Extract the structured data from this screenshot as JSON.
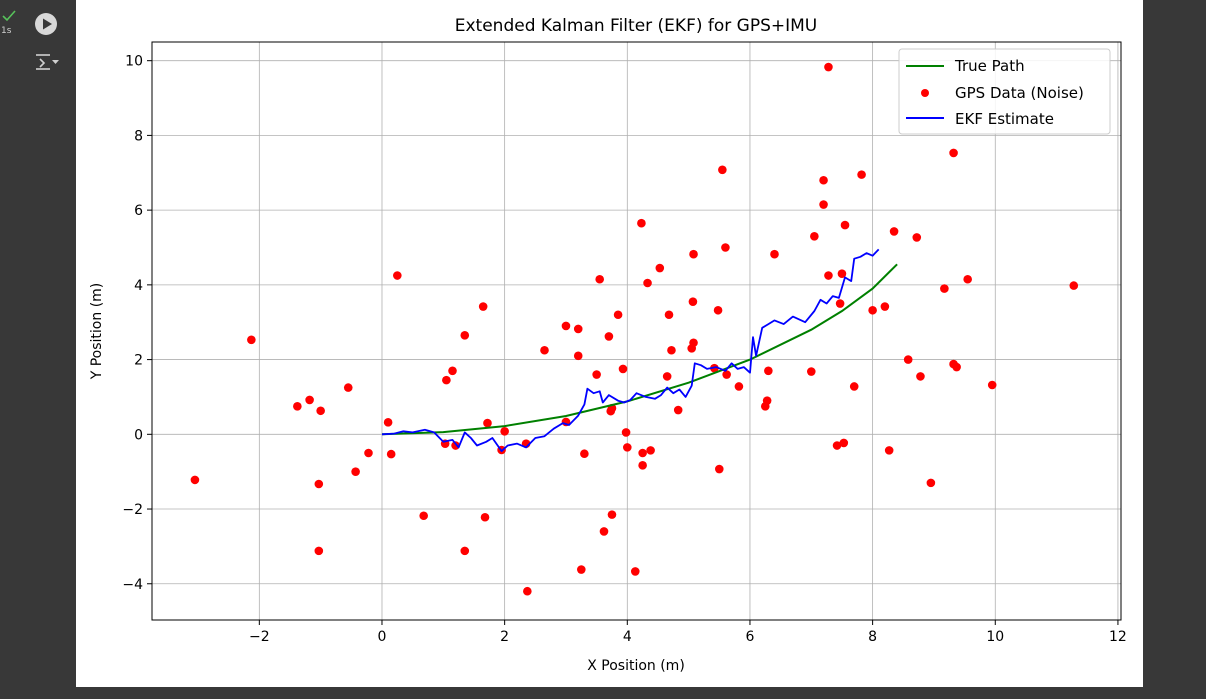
{
  "cell": {
    "exec_time": "1s",
    "run_icon": "play-icon",
    "status_icon": "check-icon",
    "output_icon": "output-toggle-icon"
  },
  "colors": {
    "true_path": "#008000",
    "gps": "#ff0000",
    "ekf": "#0000ff",
    "grid": "#b0b0b0"
  },
  "chart_data": {
    "type": "line",
    "title": "Extended Kalman Filter (EKF) for GPS+IMU",
    "xlabel": "X Position (m)",
    "ylabel": "Y Position (m)",
    "xlim": [
      -3.75,
      12.05
    ],
    "ylim": [
      -4.97,
      10.5
    ],
    "xticks": [
      -2,
      0,
      2,
      4,
      6,
      8,
      10,
      12
    ],
    "yticks": [
      -4,
      -2,
      0,
      2,
      4,
      6,
      8,
      10
    ],
    "xtick_labels": [
      "−2",
      "0",
      "2",
      "4",
      "6",
      "8",
      "10",
      "12"
    ],
    "ytick_labels": [
      "−4",
      "−2",
      "0",
      "2",
      "4",
      "6",
      "8",
      "10"
    ],
    "grid": true,
    "legend_position": "top-right",
    "legend": [
      "True Path",
      "GPS Data (Noise)",
      "EKF Estimate"
    ],
    "series": [
      {
        "name": "True Path",
        "kind": "line",
        "x": [
          0,
          1,
          2,
          3,
          4,
          5,
          6,
          7,
          7.5,
          8,
          8.4
        ],
        "y": [
          0,
          0.06,
          0.22,
          0.49,
          0.88,
          1.38,
          2.0,
          2.8,
          3.3,
          3.9,
          4.55
        ]
      },
      {
        "name": "GPS Data (Noise)",
        "kind": "scatter",
        "points": [
          [
            -3.05,
            -1.22
          ],
          [
            -2.13,
            2.53
          ],
          [
            -1.38,
            0.75
          ],
          [
            -1.18,
            0.92
          ],
          [
            -1.0,
            0.63
          ],
          [
            -1.03,
            -1.33
          ],
          [
            -1.03,
            -3.12
          ],
          [
            -0.55,
            1.25
          ],
          [
            -0.43,
            -1.0
          ],
          [
            -0.22,
            -0.5
          ],
          [
            0.1,
            0.32
          ],
          [
            0.15,
            -0.53
          ],
          [
            0.25,
            4.25
          ],
          [
            0.68,
            -2.18
          ],
          [
            1.03,
            -0.25
          ],
          [
            1.05,
            1.45
          ],
          [
            1.15,
            1.7
          ],
          [
            1.2,
            -0.3
          ],
          [
            1.35,
            2.65
          ],
          [
            1.35,
            -3.12
          ],
          [
            1.65,
            3.42
          ],
          [
            1.68,
            -2.22
          ],
          [
            1.72,
            0.3
          ],
          [
            1.95,
            -0.42
          ],
          [
            2.0,
            0.08
          ],
          [
            2.35,
            -0.25
          ],
          [
            2.37,
            -4.2
          ],
          [
            2.65,
            2.25
          ],
          [
            3.0,
            2.9
          ],
          [
            3.0,
            0.33
          ],
          [
            3.2,
            2.1
          ],
          [
            3.2,
            2.82
          ],
          [
            3.25,
            -3.62
          ],
          [
            3.3,
            -0.52
          ],
          [
            3.5,
            1.6
          ],
          [
            3.55,
            4.15
          ],
          [
            3.62,
            -2.6
          ],
          [
            3.7,
            2.62
          ],
          [
            3.73,
            0.62
          ],
          [
            3.75,
            0.7
          ],
          [
            3.75,
            -2.15
          ],
          [
            3.85,
            3.2
          ],
          [
            3.93,
            1.75
          ],
          [
            3.98,
            0.05
          ],
          [
            4.0,
            -0.35
          ],
          [
            4.13,
            -3.67
          ],
          [
            4.23,
            5.65
          ],
          [
            4.25,
            -0.5
          ],
          [
            4.25,
            -0.83
          ],
          [
            4.33,
            4.05
          ],
          [
            4.38,
            -0.43
          ],
          [
            4.53,
            4.45
          ],
          [
            4.65,
            1.55
          ],
          [
            4.68,
            3.2
          ],
          [
            4.72,
            2.25
          ],
          [
            4.83,
            0.65
          ],
          [
            5.05,
            2.3
          ],
          [
            5.08,
            2.45
          ],
          [
            5.07,
            3.55
          ],
          [
            5.08,
            4.82
          ],
          [
            5.42,
            1.77
          ],
          [
            5.48,
            3.32
          ],
          [
            5.5,
            -0.93
          ],
          [
            5.55,
            7.08
          ],
          [
            5.6,
            5.0
          ],
          [
            5.62,
            1.6
          ],
          [
            5.82,
            1.28
          ],
          [
            6.25,
            0.75
          ],
          [
            6.28,
            0.9
          ],
          [
            6.3,
            1.7
          ],
          [
            6.4,
            4.82
          ],
          [
            7.0,
            1.68
          ],
          [
            7.05,
            5.3
          ],
          [
            7.2,
            6.8
          ],
          [
            7.2,
            6.15
          ],
          [
            7.28,
            9.83
          ],
          [
            7.28,
            4.25
          ],
          [
            7.42,
            -0.3
          ],
          [
            7.47,
            3.5
          ],
          [
            7.5,
            4.3
          ],
          [
            7.53,
            -0.23
          ],
          [
            7.55,
            5.6
          ],
          [
            7.7,
            1.28
          ],
          [
            7.82,
            6.95
          ],
          [
            8.0,
            3.32
          ],
          [
            8.2,
            3.42
          ],
          [
            8.27,
            -0.43
          ],
          [
            8.35,
            5.43
          ],
          [
            8.58,
            2.0
          ],
          [
            8.72,
            5.27
          ],
          [
            8.78,
            1.55
          ],
          [
            8.95,
            -1.3
          ],
          [
            9.17,
            3.9
          ],
          [
            9.32,
            7.53
          ],
          [
            9.32,
            1.88
          ],
          [
            9.37,
            1.8
          ],
          [
            9.55,
            4.15
          ],
          [
            9.95,
            1.32
          ],
          [
            11.28,
            3.98
          ]
        ]
      },
      {
        "name": "EKF Estimate",
        "kind": "line",
        "x": [
          0,
          0.2,
          0.35,
          0.5,
          0.7,
          0.85,
          1.0,
          1.15,
          1.25,
          1.35,
          1.45,
          1.55,
          1.7,
          1.8,
          1.95,
          2.05,
          2.2,
          2.35,
          2.5,
          2.65,
          2.8,
          2.95,
          3.05,
          3.2,
          3.3,
          3.35,
          3.45,
          3.55,
          3.6,
          3.7,
          3.85,
          3.95,
          4.05,
          4.15,
          4.3,
          4.45,
          4.55,
          4.65,
          4.75,
          4.85,
          4.95,
          5.05,
          5.1,
          5.2,
          5.3,
          5.45,
          5.6,
          5.7,
          5.8,
          5.9,
          6.0,
          6.05,
          6.1,
          6.2,
          6.3,
          6.4,
          6.55,
          6.7,
          6.9,
          7.05,
          7.15,
          7.25,
          7.35,
          7.45,
          7.55,
          7.65,
          7.7,
          7.8,
          7.9,
          8.0,
          8.1
        ],
        "y": [
          0,
          0.02,
          0.08,
          0.05,
          0.12,
          0.05,
          -0.2,
          -0.15,
          -0.35,
          0.05,
          -0.1,
          -0.3,
          -0.2,
          -0.1,
          -0.45,
          -0.3,
          -0.25,
          -0.35,
          -0.1,
          -0.05,
          0.15,
          0.3,
          0.25,
          0.5,
          0.8,
          1.22,
          1.1,
          1.15,
          0.85,
          1.05,
          0.9,
          0.85,
          0.92,
          1.1,
          1.0,
          0.95,
          1.05,
          1.25,
          1.1,
          1.2,
          1.0,
          1.3,
          1.9,
          1.85,
          1.75,
          1.8,
          1.7,
          1.9,
          1.75,
          1.8,
          1.65,
          2.6,
          2.1,
          2.85,
          2.95,
          3.05,
          2.95,
          3.15,
          3.0,
          3.3,
          3.6,
          3.5,
          3.7,
          3.65,
          4.2,
          4.1,
          4.7,
          4.75,
          4.85,
          4.78,
          4.95
        ]
      }
    ]
  }
}
